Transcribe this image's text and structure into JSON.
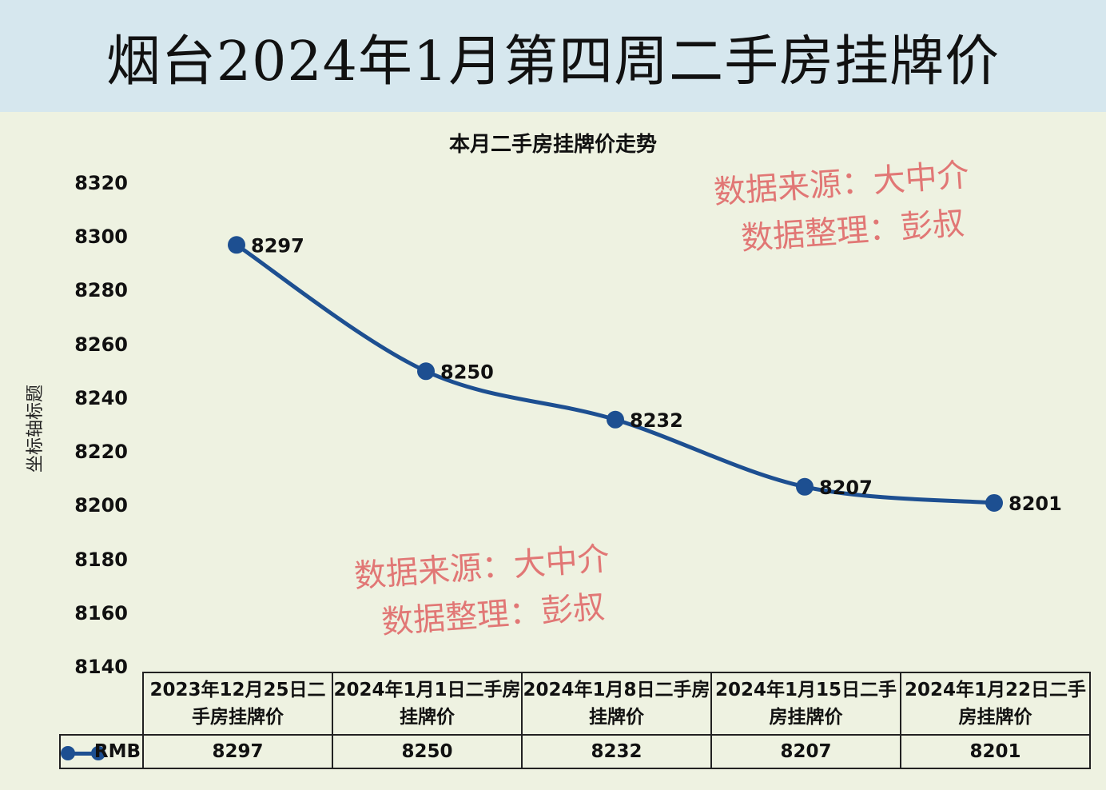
{
  "header": {
    "title": "烟台2024年1月第四周二手房挂牌价"
  },
  "watermark": {
    "line1": "数据来源：大中介",
    "line2": "数据整理：彭叔"
  },
  "chart_data": {
    "type": "line",
    "title": "本月二手房挂牌价走势",
    "ylabel": "坐标轴标题",
    "xlabel": "",
    "ylim": [
      8140,
      8320
    ],
    "yticks": [
      "8320",
      "8300",
      "8280",
      "8260",
      "8240",
      "8220",
      "8200",
      "8180",
      "8160",
      "8140"
    ],
    "categories": [
      "2023年12月25日二手房挂牌价",
      "2024年1月1日二手房挂牌价",
      "2024年1月8日二手房挂牌价",
      "2024年1月15日二手房挂牌价",
      "2024年1月22日二手房挂牌价"
    ],
    "series": [
      {
        "name": "RMB",
        "values": [
          8297,
          8250,
          8232,
          8207,
          8201
        ],
        "labels": [
          "8297",
          "8250",
          "8232",
          "8207",
          "8201"
        ],
        "color": "#1d4f91"
      }
    ],
    "legend": "bottom-data-table"
  }
}
